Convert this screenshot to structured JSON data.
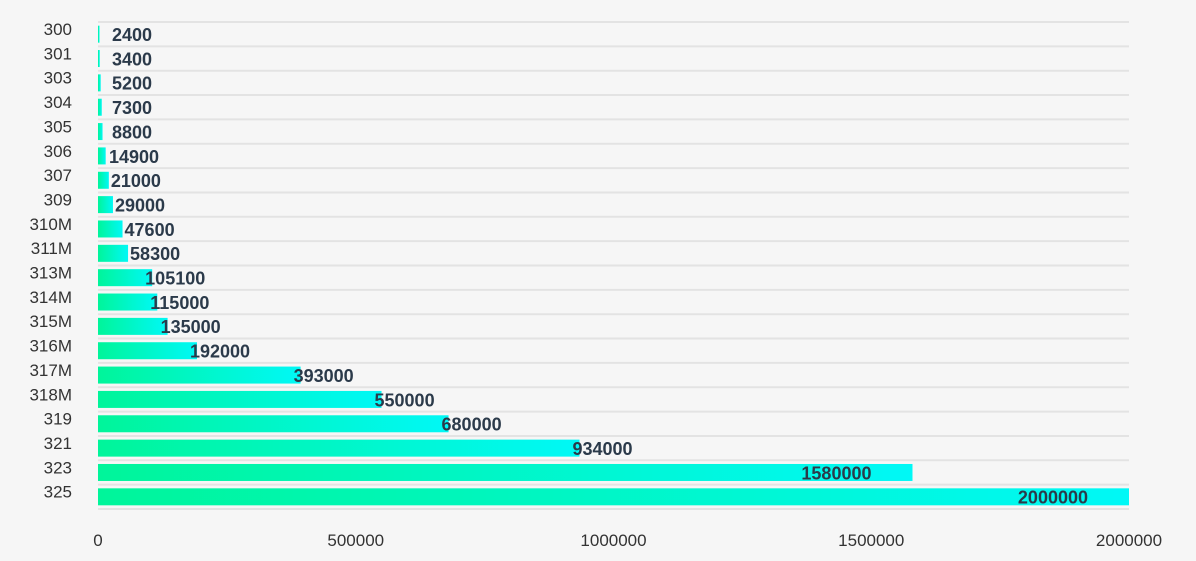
{
  "chart_data": {
    "type": "bar",
    "orientation": "horizontal",
    "categories": [
      "300",
      "301",
      "303",
      "304",
      "305",
      "306",
      "307",
      "309",
      "310M",
      "311M",
      "313M",
      "314M",
      "315M",
      "316M",
      "317M",
      "318M",
      "319",
      "321",
      "323",
      "325"
    ],
    "values": [
      2400,
      3400,
      5200,
      7300,
      8800,
      14900,
      21000,
      29000,
      47600,
      58300,
      105100,
      115000,
      135000,
      192000,
      393000,
      550000,
      680000,
      934000,
      1580000,
      2000000
    ],
    "value_labels": [
      "2400",
      "3400",
      "5200",
      "7300",
      "8800",
      "14900",
      "21000",
      "29000",
      "47600",
      "58300",
      "105100",
      "115000",
      "135000",
      "192000",
      "393000",
      "550000",
      "680000",
      "934000",
      "1580000",
      "2000000"
    ],
    "x_ticks": [
      "0",
      "500000",
      "1000000",
      "1500000",
      "2000000"
    ],
    "xlim": [
      0,
      2000000
    ],
    "title": "",
    "xlabel": "",
    "ylabel": "",
    "grid": true,
    "colors": {
      "bar_gradient_start": "#00f59a",
      "bar_gradient_end": "#00f8f6",
      "grid": "#e3e3e3",
      "value_label": "#2b3a4a",
      "axis_label": "#333333",
      "background": "#f6f6f6"
    }
  }
}
